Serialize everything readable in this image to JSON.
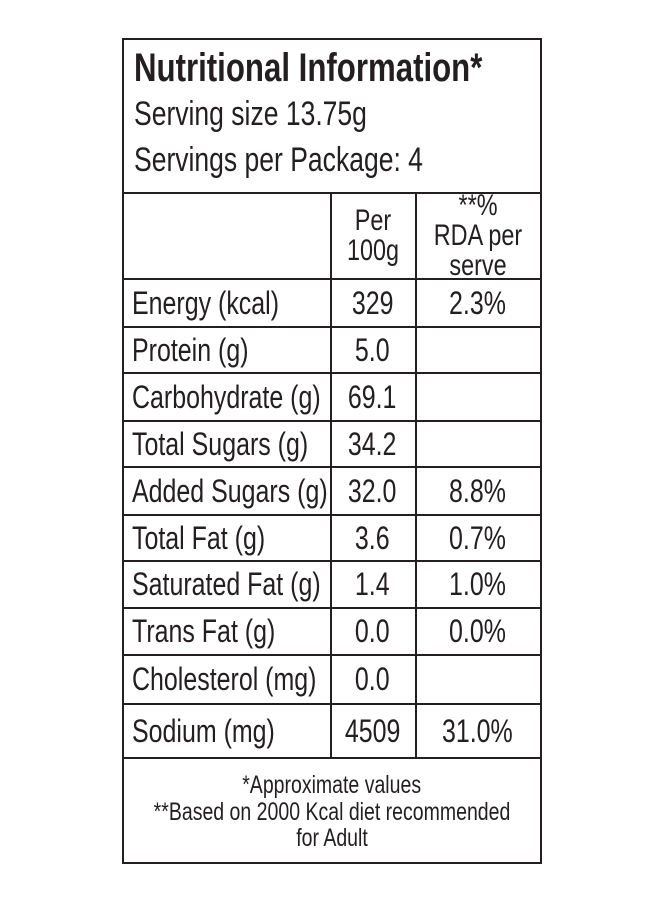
{
  "header": {
    "title": "Nutritional Information*",
    "serving_size": "Serving size 13.75g",
    "servings": "Servings per Package: 4"
  },
  "table": {
    "columns": [
      "Per 100g",
      "**% RDA per serve"
    ],
    "rows": [
      [
        "Energy (kcal)",
        "329",
        "2.3%"
      ],
      [
        "Protein (g)",
        "5.0"
      ],
      [
        "Carbohydrate (g)",
        "69.1"
      ],
      [
        "Total Sugars (g)",
        "34.2"
      ],
      [
        "Added Sugars (g)",
        "32.0",
        "8.8%"
      ],
      [
        "Total Fat (g)",
        "3.6",
        "0.7%"
      ],
      [
        "Saturated Fat (g)",
        "1.4",
        "1.0%"
      ],
      [
        "Trans Fat (g)",
        "0.0",
        "0.0%"
      ],
      [
        "Cholesterol (mg)",
        "0.0"
      ],
      [
        "Sodium (mg)",
        "4509",
        "31.0%"
      ]
    ]
  },
  "footer": {
    "note1": "*Approximate values",
    "note2": "**Based on 2000 Kcal diet recommended for Adult"
  }
}
